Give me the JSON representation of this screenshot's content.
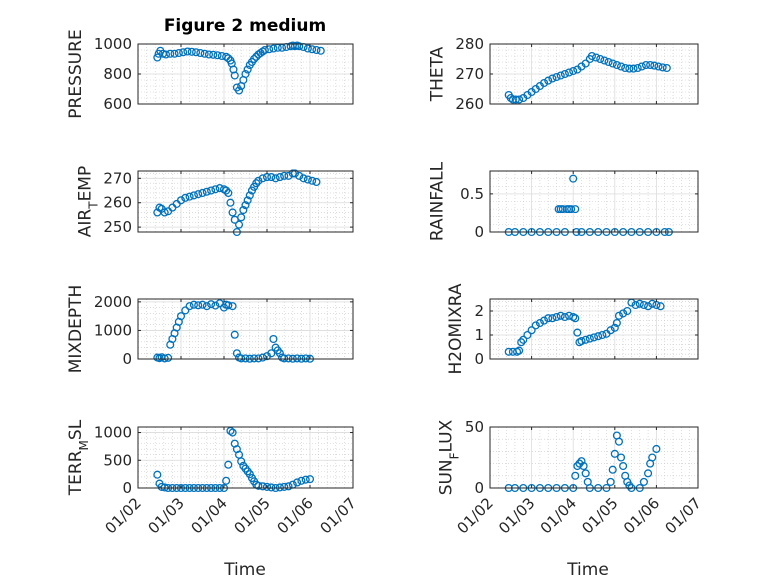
{
  "figure": {
    "title": "Figure 2 medium",
    "xlabel": "Time",
    "marker_color": "#0072BD"
  },
  "x_ticks": [
    "01/02",
    "01/03",
    "01/04",
    "01/05",
    "01/06",
    "01/07"
  ],
  "chart_data": [
    {
      "type": "scatter",
      "name": "pressure",
      "ylabel": "PRESSURE",
      "ylabel_sub": "",
      "ylabel_tail": "",
      "ylim": [
        600,
        1000
      ],
      "yticks": [
        600,
        800,
        1000
      ],
      "xlim": [
        1,
        6
      ],
      "points": [
        [
          1.45,
          910
        ],
        [
          1.48,
          935
        ],
        [
          1.52,
          955
        ],
        [
          1.58,
          935
        ],
        [
          1.65,
          930
        ],
        [
          1.75,
          935
        ],
        [
          1.85,
          935
        ],
        [
          1.95,
          940
        ],
        [
          2.05,
          945
        ],
        [
          2.15,
          950
        ],
        [
          2.25,
          948
        ],
        [
          2.35,
          945
        ],
        [
          2.45,
          940
        ],
        [
          2.55,
          935
        ],
        [
          2.65,
          930
        ],
        [
          2.75,
          928
        ],
        [
          2.85,
          925
        ],
        [
          2.95,
          920
        ],
        [
          3.05,
          915
        ],
        [
          3.1,
          905
        ],
        [
          3.15,
          890
        ],
        [
          3.18,
          870
        ],
        [
          3.22,
          830
        ],
        [
          3.25,
          790
        ],
        [
          3.3,
          710
        ],
        [
          3.35,
          690
        ],
        [
          3.4,
          720
        ],
        [
          3.45,
          760
        ],
        [
          3.5,
          800
        ],
        [
          3.55,
          830
        ],
        [
          3.6,
          860
        ],
        [
          3.65,
          880
        ],
        [
          3.7,
          900
        ],
        [
          3.75,
          915
        ],
        [
          3.8,
          930
        ],
        [
          3.85,
          940
        ],
        [
          3.9,
          950
        ],
        [
          3.95,
          960
        ],
        [
          4.05,
          965
        ],
        [
          4.15,
          970
        ],
        [
          4.25,
          975
        ],
        [
          4.35,
          975
        ],
        [
          4.45,
          980
        ],
        [
          4.55,
          985
        ],
        [
          4.6,
          990
        ],
        [
          4.65,
          985
        ],
        [
          4.7,
          990
        ],
        [
          4.75,
          985
        ],
        [
          4.85,
          980
        ],
        [
          4.95,
          970
        ],
        [
          5.05,
          965
        ],
        [
          5.15,
          960
        ],
        [
          5.25,
          955
        ]
      ]
    },
    {
      "type": "scatter",
      "name": "theta",
      "ylabel": "THETA",
      "ylabel_sub": "",
      "ylabel_tail": "",
      "ylim": [
        260,
        280
      ],
      "yticks": [
        260,
        270,
        280
      ],
      "xlim": [
        1,
        6
      ],
      "points": [
        [
          1.45,
          263
        ],
        [
          1.5,
          262
        ],
        [
          1.55,
          261.5
        ],
        [
          1.62,
          261.5
        ],
        [
          1.7,
          261.5
        ],
        [
          1.8,
          262
        ],
        [
          1.9,
          263
        ],
        [
          2.0,
          264
        ],
        [
          2.1,
          265
        ],
        [
          2.2,
          266
        ],
        [
          2.3,
          267
        ],
        [
          2.4,
          267.8
        ],
        [
          2.5,
          268.5
        ],
        [
          2.6,
          269
        ],
        [
          2.7,
          269.5
        ],
        [
          2.8,
          270
        ],
        [
          2.9,
          270.5
        ],
        [
          3.0,
          271
        ],
        [
          3.1,
          271.5
        ],
        [
          3.2,
          272.5
        ],
        [
          3.3,
          273.5
        ],
        [
          3.4,
          275
        ],
        [
          3.45,
          276
        ],
        [
          3.55,
          275.5
        ],
        [
          3.65,
          275
        ],
        [
          3.75,
          274.5
        ],
        [
          3.85,
          274
        ],
        [
          3.95,
          273.5
        ],
        [
          4.05,
          273
        ],
        [
          4.15,
          272.5
        ],
        [
          4.25,
          272
        ],
        [
          4.35,
          271.8
        ],
        [
          4.45,
          271.8
        ],
        [
          4.55,
          272
        ],
        [
          4.65,
          272.5
        ],
        [
          4.75,
          273
        ],
        [
          4.85,
          273
        ],
        [
          4.95,
          272.8
        ],
        [
          5.05,
          272.5
        ],
        [
          5.15,
          272.2
        ],
        [
          5.25,
          272
        ]
      ]
    },
    {
      "type": "scatter",
      "name": "air_temp",
      "ylabel": "AIR",
      "ylabel_sub": "T",
      "ylabel_tail": "EMP",
      "ylim": [
        248,
        273
      ],
      "yticks": [
        250,
        260,
        270
      ],
      "xlim": [
        1,
        6
      ],
      "points": [
        [
          1.45,
          256
        ],
        [
          1.5,
          258
        ],
        [
          1.55,
          257.5
        ],
        [
          1.62,
          256
        ],
        [
          1.7,
          256.5
        ],
        [
          1.8,
          258
        ],
        [
          1.9,
          259.5
        ],
        [
          2.0,
          261
        ],
        [
          2.1,
          262
        ],
        [
          2.2,
          262.5
        ],
        [
          2.3,
          263
        ],
        [
          2.4,
          263.5
        ],
        [
          2.5,
          264
        ],
        [
          2.6,
          264.5
        ],
        [
          2.7,
          265
        ],
        [
          2.8,
          265.5
        ],
        [
          2.9,
          266
        ],
        [
          3.0,
          265.5
        ],
        [
          3.05,
          265
        ],
        [
          3.1,
          264
        ],
        [
          3.15,
          260
        ],
        [
          3.2,
          256
        ],
        [
          3.25,
          253
        ],
        [
          3.3,
          248
        ],
        [
          3.35,
          251
        ],
        [
          3.4,
          254
        ],
        [
          3.45,
          257
        ],
        [
          3.5,
          259
        ],
        [
          3.55,
          261
        ],
        [
          3.6,
          263
        ],
        [
          3.65,
          265
        ],
        [
          3.7,
          266.5
        ],
        [
          3.75,
          268
        ],
        [
          3.8,
          269
        ],
        [
          3.9,
          270
        ],
        [
          4.0,
          270.5
        ],
        [
          4.1,
          270.5
        ],
        [
          4.2,
          270
        ],
        [
          4.3,
          270.5
        ],
        [
          4.4,
          271
        ],
        [
          4.5,
          271
        ],
        [
          4.6,
          272
        ],
        [
          4.65,
          272
        ],
        [
          4.75,
          271
        ],
        [
          4.85,
          270
        ],
        [
          4.95,
          269.5
        ],
        [
          5.05,
          269
        ],
        [
          5.15,
          268.5
        ]
      ]
    },
    {
      "type": "scatter",
      "name": "rainfall",
      "ylabel": "RAINFALL",
      "ylabel_sub": "",
      "ylabel_tail": "",
      "ylim": [
        0,
        0.8
      ],
      "yticks": [
        0,
        0.5
      ],
      "xlim": [
        1,
        6
      ],
      "points": [
        [
          1.45,
          0
        ],
        [
          1.6,
          0
        ],
        [
          1.8,
          0
        ],
        [
          2.0,
          0
        ],
        [
          2.2,
          0
        ],
        [
          2.4,
          0
        ],
        [
          2.6,
          0
        ],
        [
          2.65,
          0.3
        ],
        [
          2.7,
          0.3
        ],
        [
          2.75,
          0.3
        ],
        [
          2.8,
          0
        ],
        [
          2.85,
          0.3
        ],
        [
          2.9,
          0.3
        ],
        [
          2.95,
          0.3
        ],
        [
          3.0,
          0.7
        ],
        [
          3.05,
          0.3
        ],
        [
          3.08,
          0
        ],
        [
          3.2,
          0
        ],
        [
          3.4,
          0
        ],
        [
          3.6,
          0
        ],
        [
          3.8,
          0
        ],
        [
          4.0,
          0
        ],
        [
          4.2,
          0
        ],
        [
          4.4,
          0
        ],
        [
          4.6,
          0
        ],
        [
          4.8,
          0
        ],
        [
          5.0,
          0
        ],
        [
          5.2,
          0
        ],
        [
          5.3,
          0
        ]
      ]
    },
    {
      "type": "scatter",
      "name": "mixdepth",
      "ylabel": "MIXDEPTH",
      "ylabel_sub": "",
      "ylabel_tail": "",
      "ylim": [
        0,
        2100
      ],
      "yticks": [
        0,
        1000,
        2000
      ],
      "xlim": [
        1,
        6
      ],
      "points": [
        [
          1.45,
          50
        ],
        [
          1.5,
          30
        ],
        [
          1.55,
          60
        ],
        [
          1.62,
          20
        ],
        [
          1.7,
          40
        ],
        [
          1.75,
          500
        ],
        [
          1.8,
          700
        ],
        [
          1.85,
          900
        ],
        [
          1.9,
          1100
        ],
        [
          1.95,
          1300
        ],
        [
          2.0,
          1500
        ],
        [
          2.1,
          1700
        ],
        [
          2.2,
          1850
        ],
        [
          2.3,
          1900
        ],
        [
          2.4,
          1880
        ],
        [
          2.5,
          1900
        ],
        [
          2.6,
          1850
        ],
        [
          2.7,
          1920
        ],
        [
          2.8,
          1870
        ],
        [
          2.9,
          1950
        ],
        [
          3.0,
          1800
        ],
        [
          3.05,
          1900
        ],
        [
          3.1,
          1880
        ],
        [
          3.2,
          1850
        ],
        [
          3.25,
          850
        ],
        [
          3.3,
          200
        ],
        [
          3.35,
          50
        ],
        [
          3.4,
          20
        ],
        [
          3.5,
          20
        ],
        [
          3.6,
          10
        ],
        [
          3.7,
          20
        ],
        [
          3.8,
          20
        ],
        [
          3.9,
          50
        ],
        [
          4.0,
          100
        ],
        [
          4.1,
          200
        ],
        [
          4.15,
          700
        ],
        [
          4.2,
          400
        ],
        [
          4.25,
          300
        ],
        [
          4.3,
          200
        ],
        [
          4.35,
          50
        ],
        [
          4.4,
          20
        ],
        [
          4.5,
          20
        ],
        [
          4.6,
          10
        ],
        [
          4.7,
          20
        ],
        [
          4.8,
          10
        ],
        [
          4.9,
          20
        ],
        [
          5.0,
          10
        ]
      ]
    },
    {
      "type": "scatter",
      "name": "h2omixra",
      "ylabel": "H2OMIXRA",
      "ylabel_sub": "",
      "ylabel_tail": "",
      "ylim": [
        0,
        2.5
      ],
      "yticks": [
        0,
        1,
        2
      ],
      "xlim": [
        1,
        6
      ],
      "points": [
        [
          1.45,
          0.3
        ],
        [
          1.55,
          0.3
        ],
        [
          1.65,
          0.3
        ],
        [
          1.7,
          0.35
        ],
        [
          1.75,
          0.7
        ],
        [
          1.8,
          0.8
        ],
        [
          1.9,
          1.0
        ],
        [
          2.0,
          1.2
        ],
        [
          2.1,
          1.4
        ],
        [
          2.2,
          1.5
        ],
        [
          2.3,
          1.6
        ],
        [
          2.4,
          1.7
        ],
        [
          2.5,
          1.7
        ],
        [
          2.6,
          1.75
        ],
        [
          2.7,
          1.8
        ],
        [
          2.8,
          1.75
        ],
        [
          2.9,
          1.8
        ],
        [
          3.0,
          1.75
        ],
        [
          3.05,
          1.7
        ],
        [
          3.1,
          1.1
        ],
        [
          3.15,
          0.7
        ],
        [
          3.2,
          0.75
        ],
        [
          3.3,
          0.8
        ],
        [
          3.4,
          0.85
        ],
        [
          3.5,
          0.9
        ],
        [
          3.6,
          0.95
        ],
        [
          3.7,
          1.0
        ],
        [
          3.8,
          1.05
        ],
        [
          3.9,
          1.2
        ],
        [
          4.0,
          1.3
        ],
        [
          4.05,
          1.5
        ],
        [
          4.1,
          1.8
        ],
        [
          4.2,
          1.9
        ],
        [
          4.3,
          2.0
        ],
        [
          4.4,
          2.35
        ],
        [
          4.5,
          2.25
        ],
        [
          4.6,
          2.3
        ],
        [
          4.7,
          2.25
        ],
        [
          4.8,
          2.2
        ],
        [
          4.9,
          2.3
        ],
        [
          5.0,
          2.25
        ],
        [
          5.1,
          2.2
        ]
      ]
    },
    {
      "type": "scatter",
      "name": "terr_msl",
      "ylabel": "TERR",
      "ylabel_sub": "M",
      "ylabel_tail": "SL",
      "ylim": [
        0,
        1100
      ],
      "yticks": [
        0,
        500,
        1000
      ],
      "xlim": [
        1,
        6
      ],
      "points": [
        [
          1.45,
          240
        ],
        [
          1.5,
          80
        ],
        [
          1.55,
          20
        ],
        [
          1.62,
          10
        ],
        [
          1.7,
          0
        ],
        [
          1.8,
          0
        ],
        [
          1.9,
          0
        ],
        [
          2.0,
          0
        ],
        [
          2.1,
          0
        ],
        [
          2.2,
          0
        ],
        [
          2.3,
          0
        ],
        [
          2.4,
          0
        ],
        [
          2.5,
          0
        ],
        [
          2.6,
          0
        ],
        [
          2.7,
          0
        ],
        [
          2.8,
          0
        ],
        [
          2.9,
          0
        ],
        [
          3.0,
          0
        ],
        [
          3.05,
          130
        ],
        [
          3.1,
          420
        ],
        [
          3.15,
          1030
        ],
        [
          3.2,
          1000
        ],
        [
          3.25,
          800
        ],
        [
          3.3,
          700
        ],
        [
          3.35,
          600
        ],
        [
          3.4,
          480
        ],
        [
          3.45,
          400
        ],
        [
          3.5,
          350
        ],
        [
          3.55,
          300
        ],
        [
          3.6,
          250
        ],
        [
          3.65,
          180
        ],
        [
          3.7,
          120
        ],
        [
          3.75,
          60
        ],
        [
          3.8,
          40
        ],
        [
          3.9,
          30
        ],
        [
          4.0,
          20
        ],
        [
          4.1,
          10
        ],
        [
          4.2,
          0
        ],
        [
          4.3,
          10
        ],
        [
          4.4,
          20
        ],
        [
          4.5,
          30
        ],
        [
          4.6,
          60
        ],
        [
          4.7,
          100
        ],
        [
          4.8,
          130
        ],
        [
          4.9,
          150
        ],
        [
          5.0,
          160
        ]
      ]
    },
    {
      "type": "scatter",
      "name": "sun_flux",
      "ylabel": "SUN",
      "ylabel_sub": "F",
      "ylabel_tail": "LUX",
      "ylim": [
        0,
        50
      ],
      "yticks": [
        0,
        50
      ],
      "xlim": [
        1,
        6
      ],
      "points": [
        [
          1.45,
          0
        ],
        [
          1.6,
          0
        ],
        [
          1.8,
          0
        ],
        [
          2.0,
          0
        ],
        [
          2.2,
          0
        ],
        [
          2.4,
          0
        ],
        [
          2.6,
          0
        ],
        [
          2.8,
          0
        ],
        [
          3.0,
          0
        ],
        [
          3.05,
          10
        ],
        [
          3.1,
          18
        ],
        [
          3.15,
          20
        ],
        [
          3.2,
          22
        ],
        [
          3.25,
          18
        ],
        [
          3.3,
          12
        ],
        [
          3.35,
          5
        ],
        [
          3.4,
          0
        ],
        [
          3.6,
          0
        ],
        [
          3.8,
          0
        ],
        [
          3.9,
          5
        ],
        [
          3.95,
          15
        ],
        [
          4.0,
          28
        ],
        [
          4.05,
          43
        ],
        [
          4.1,
          38
        ],
        [
          4.15,
          25
        ],
        [
          4.2,
          18
        ],
        [
          4.25,
          10
        ],
        [
          4.3,
          5
        ],
        [
          4.35,
          2
        ],
        [
          4.4,
          0
        ],
        [
          4.6,
          0
        ],
        [
          4.7,
          5
        ],
        [
          4.8,
          12
        ],
        [
          4.85,
          20
        ],
        [
          4.9,
          25
        ],
        [
          5.0,
          32
        ]
      ]
    }
  ]
}
